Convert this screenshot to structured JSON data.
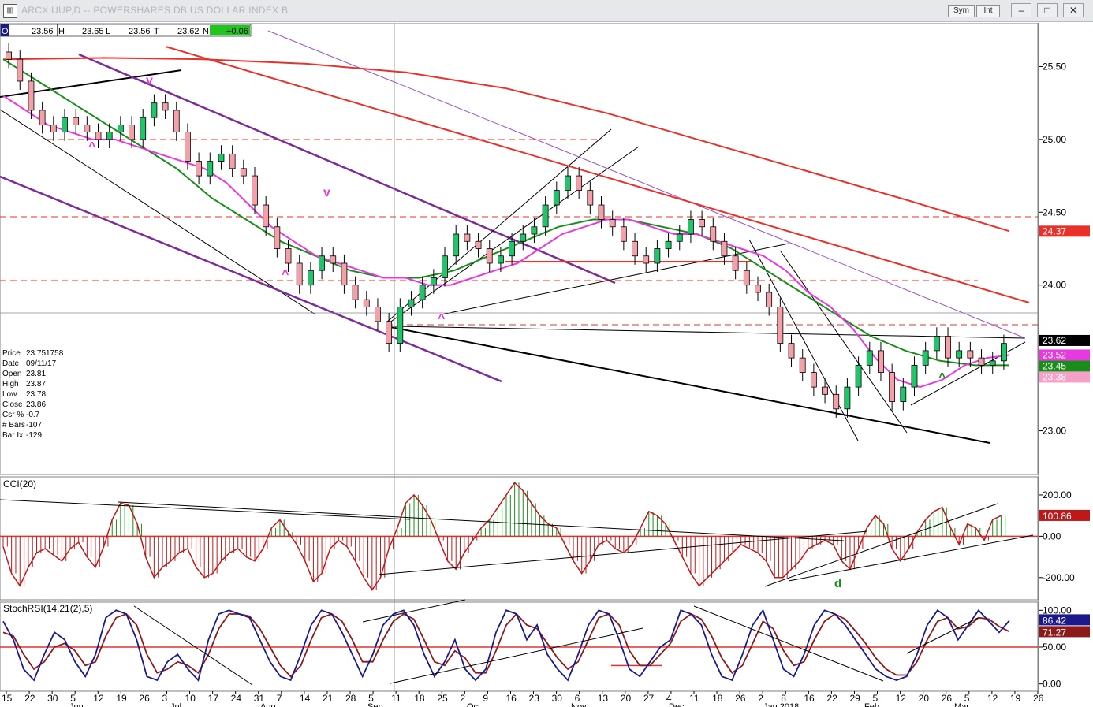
{
  "window": {
    "title": "ARCX:UUP,D -- POWERSHARES DB US DOLLAR INDEX B",
    "sym_label": "Sym",
    "int_label": "Int",
    "min_glyph": "–",
    "max_glyph": "□",
    "close_glyph": "✕",
    "app_icon": "chart-app-icon"
  },
  "ohlc_bar": {
    "o_label": "O",
    "o_value": "23.56",
    "h_label": "H",
    "h_value": "23.65",
    "l_label": "L",
    "l_value": "23.56",
    "c_label": "T",
    "c_value": "23.62",
    "n_label": "N",
    "n_value": "+0.06",
    "change_color": "#22c422"
  },
  "cursor_info": [
    {
      "label": "Price",
      "value": "23.751758"
    },
    {
      "label": "Date",
      "value": "09/11/17"
    },
    {
      "label": "Open",
      "value": "23.81"
    },
    {
      "label": "High",
      "value": "23.87"
    },
    {
      "label": "Low",
      "value": "23.78"
    },
    {
      "label": "Close",
      "value": "23.86"
    },
    {
      "label": "Csr %",
      "value": "-0.7"
    },
    {
      "label": "# Bars",
      "value": "-107"
    },
    {
      "label": "Bar Ix",
      "value": "-129"
    }
  ],
  "chart_data": [
    {
      "type": "candlestick",
      "panel": "price",
      "ylim": [
        22.7,
        25.8
      ],
      "y_ticks": [
        "25.50",
        "25.00",
        "24.50",
        "24.00",
        "23.00"
      ],
      "y_tick_values": [
        25.5,
        25.0,
        24.5,
        24.0,
        23.0
      ],
      "price_tags": [
        {
          "label": "24.37",
          "value": 24.37,
          "color": "#e8312a",
          "text_color": "#ffffff"
        },
        {
          "label": "23.62",
          "value": 23.62,
          "color": "#000000",
          "text_color": "#ffffff"
        },
        {
          "label": "23.52",
          "value": 23.52,
          "color": "#e838e0",
          "text_color": "#ffffff"
        },
        {
          "label": "23.45",
          "value": 23.45,
          "color": "#1a8c1a",
          "text_color": "#ffffff"
        },
        {
          "label": "23.38",
          "value": 23.38,
          "color": "#f4a0c8",
          "text_color": "#ffffff"
        }
      ],
      "closes": [
        25.55,
        25.4,
        25.2,
        25.1,
        25.05,
        25.15,
        25.1,
        25.05,
        25.0,
        25.05,
        25.1,
        25.0,
        25.15,
        25.25,
        25.2,
        25.05,
        24.85,
        24.75,
        24.85,
        24.9,
        24.8,
        24.75,
        24.55,
        24.4,
        24.25,
        24.15,
        24.0,
        24.1,
        24.2,
        24.15,
        24.0,
        23.9,
        23.85,
        23.75,
        23.6,
        23.85,
        23.9,
        24.0,
        24.05,
        24.2,
        24.35,
        24.3,
        24.25,
        24.15,
        24.2,
        24.3,
        24.35,
        24.4,
        24.55,
        24.65,
        24.75,
        24.65,
        24.55,
        24.45,
        24.4,
        24.3,
        24.2,
        24.15,
        24.25,
        24.3,
        24.35,
        24.45,
        24.4,
        24.3,
        24.2,
        24.1,
        24.0,
        23.95,
        23.85,
        23.6,
        23.5,
        23.4,
        23.3,
        23.25,
        23.15,
        23.3,
        23.45,
        23.55,
        23.4,
        23.2,
        23.3,
        23.45,
        23.55,
        23.65,
        23.5,
        23.55,
        23.5,
        23.45,
        23.48,
        23.6
      ],
      "ma20": [
        25.3,
        25.2,
        25.1,
        25.05,
        25.0,
        25.0,
        24.95,
        24.9,
        24.85,
        24.8,
        24.7,
        24.55,
        24.4,
        24.3,
        24.2,
        24.15,
        24.1,
        24.05,
        24.05,
        24.0,
        24.0,
        24.05,
        24.1,
        24.15,
        24.25,
        24.35,
        24.4,
        24.45,
        24.45,
        24.4,
        24.35,
        24.35,
        24.3,
        24.25,
        24.2,
        24.1,
        23.95,
        23.85,
        23.7,
        23.5,
        23.35,
        23.3,
        23.35,
        23.45,
        23.5,
        23.52
      ],
      "ma50": [
        25.55,
        25.4,
        25.25,
        25.1,
        24.95,
        24.8,
        24.6,
        24.45,
        24.3,
        24.2,
        24.1,
        24.05,
        24.05,
        24.1,
        24.2,
        24.3,
        24.4,
        24.45,
        24.45,
        24.4,
        24.35,
        24.25,
        24.1,
        23.95,
        23.8,
        23.65,
        23.55,
        23.48,
        23.45,
        23.45
      ],
      "ma200": [
        25.55,
        25.56,
        25.55,
        25.52,
        25.46,
        25.35,
        25.18,
        24.98,
        24.78,
        24.58,
        24.37
      ],
      "x_labels": [
        "15",
        "22",
        "30",
        "5",
        "12",
        "19",
        "26",
        "3",
        "10",
        "17",
        "24",
        "31",
        "7",
        "14",
        "21",
        "28",
        "5",
        "11",
        "18",
        "25",
        "2",
        "9",
        "16",
        "23",
        "30",
        "6",
        "13",
        "20",
        "27",
        "4",
        "11",
        "18",
        "26",
        "2",
        "8",
        "16",
        "22",
        "29",
        "5",
        "12",
        "20",
        "26",
        "5",
        "12",
        "19",
        "26"
      ],
      "month_labels": [
        "Jun",
        "Jul",
        "Aug",
        "Sep",
        "Oct",
        "Nov",
        "Dec",
        "Jan 2018",
        "Feb",
        "Mar"
      ],
      "annotations": [
        "v",
        "^",
        "v",
        "^",
        "^",
        "^",
        "^"
      ]
    },
    {
      "type": "bar",
      "panel": "cci",
      "title": "CCI(20)",
      "ylim": [
        -300,
        280
      ],
      "y_ticks": [
        "200.00",
        "0.00",
        "-200.00"
      ],
      "y_tick_values": [
        200,
        0,
        -200
      ],
      "last_label": "100.86",
      "last_value": 100.86,
      "annotation": "d",
      "values": [
        -50,
        -180,
        -240,
        -150,
        -80,
        -60,
        -90,
        -120,
        -60,
        -30,
        -100,
        -150,
        -50,
        80,
        160,
        150,
        60,
        -100,
        -200,
        -150,
        -120,
        -80,
        -60,
        -150,
        -200,
        -180,
        -120,
        -80,
        -60,
        -100,
        -120,
        -60,
        40,
        80,
        20,
        -40,
        -120,
        -220,
        -180,
        -60,
        -20,
        -50,
        -120,
        -200,
        -260,
        -200,
        -60,
        40,
        160,
        200,
        150,
        80,
        -20,
        -120,
        -160,
        -80,
        -20,
        40,
        80,
        140,
        200,
        260,
        220,
        160,
        100,
        60,
        40,
        -40,
        -120,
        -180,
        -120,
        -40,
        -20,
        -60,
        -80,
        -40,
        40,
        120,
        100,
        60,
        -20,
        -100,
        -180,
        -240,
        -200,
        -160,
        -120,
        -80,
        -40,
        -60,
        -80,
        -120,
        -200,
        -200,
        -160,
        -120,
        -60,
        -40,
        -20,
        -40,
        -120,
        -160,
        -60,
        40,
        100,
        60,
        -60,
        -120,
        -60,
        20,
        80,
        120,
        140,
        40,
        -40,
        60,
        40,
        -20,
        80,
        100
      ]
    },
    {
      "type": "line",
      "panel": "stochrsi",
      "title": "StochRSI(14,21(2),5)",
      "ylim": [
        -10,
        110
      ],
      "y_ticks": [
        "100.00",
        "50.00",
        "0.00"
      ],
      "y_tick_values": [
        100,
        50,
        0
      ],
      "last_labels": [
        "86.42",
        "71.27"
      ],
      "k_values": [
        85,
        60,
        20,
        5,
        40,
        70,
        60,
        30,
        10,
        40,
        90,
        100,
        95,
        60,
        10,
        5,
        30,
        40,
        20,
        5,
        60,
        95,
        100,
        95,
        90,
        60,
        30,
        10,
        5,
        40,
        80,
        100,
        95,
        70,
        40,
        10,
        40,
        80,
        95,
        100,
        80,
        40,
        10,
        30,
        60,
        20,
        5,
        20,
        70,
        100,
        95,
        60,
        80,
        40,
        20,
        5,
        40,
        80,
        100,
        95,
        60,
        20,
        10,
        30,
        50,
        60,
        100,
        95,
        80,
        40,
        10,
        5,
        40,
        80,
        100,
        60,
        20,
        10,
        40,
        80,
        100,
        95,
        80,
        60,
        40,
        20,
        10,
        5,
        10,
        40,
        80,
        100,
        90,
        60,
        80,
        100,
        85,
        70,
        86
      ],
      "d_values": [
        70,
        65,
        40,
        20,
        30,
        50,
        55,
        45,
        25,
        30,
        65,
        90,
        95,
        80,
        40,
        15,
        20,
        30,
        25,
        15,
        40,
        75,
        95,
        95,
        92,
        75,
        50,
        25,
        10,
        25,
        60,
        90,
        95,
        85,
        60,
        30,
        30,
        60,
        85,
        95,
        88,
        60,
        30,
        25,
        45,
        35,
        15,
        15,
        45,
        80,
        95,
        80,
        75,
        55,
        35,
        20,
        30,
        60,
        90,
        95,
        80,
        45,
        25,
        25,
        40,
        55,
        85,
        95,
        88,
        65,
        35,
        15,
        25,
        55,
        85,
        75,
        45,
        25,
        30,
        60,
        85,
        95,
        88,
        72,
        55,
        35,
        20,
        12,
        12,
        30,
        60,
        85,
        90,
        75,
        78,
        90,
        88,
        78,
        71
      ]
    }
  ]
}
